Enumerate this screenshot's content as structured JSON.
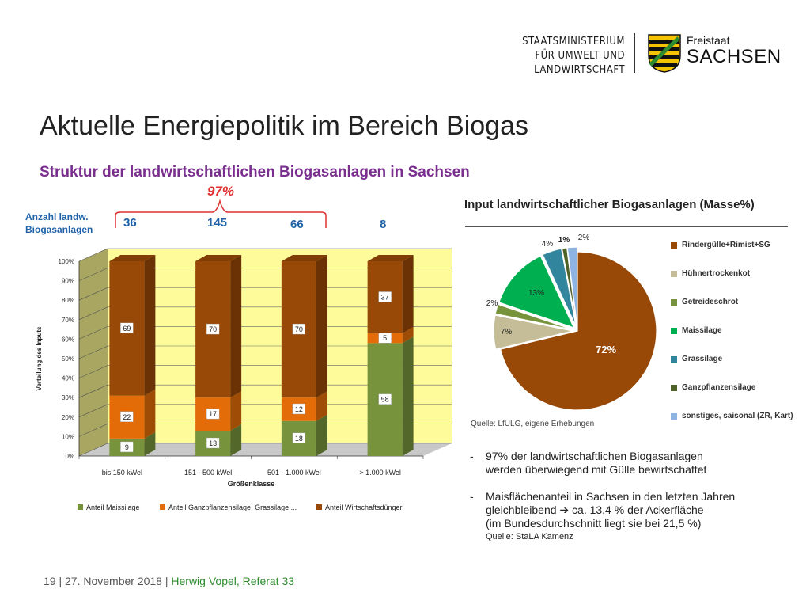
{
  "header": {
    "ministry_lines": [
      "STAATSMINISTERIUM",
      "FÜR UMWELT UND",
      "LANDWIRTSCHAFT"
    ],
    "state_small": "Freistaat",
    "state_big": "SACHSEN",
    "coat_of_arms_colors": [
      "#f5c400",
      "#111111",
      "#2e8b2e"
    ]
  },
  "page_title": "Aktuelle Energiepolitik im Bereich Biogas",
  "subtitle": "Struktur der landwirtschaftlichen Biogasanlagen in Sachsen",
  "bracket_label": "97%",
  "anzahl_label": [
    "Anzahl landw.",
    "Biogasanlagen"
  ],
  "counts": [
    "36",
    "145",
    "66",
    "8"
  ],
  "chart_data": [
    {
      "type": "bar",
      "stacked": true,
      "categories": [
        "bis 150 kWel",
        "151 - 500 kWel",
        "501 - 1.000 kWel",
        "> 1.000 kWel"
      ],
      "series": [
        {
          "name": "Anteil Maissilage",
          "values": [
            9,
            13,
            18,
            58
          ],
          "color": "#77933c"
        },
        {
          "name": "Anteil Ganzpflanzensilage, Grassilage ...",
          "values": [
            22,
            17,
            12,
            5
          ],
          "color": "#e36c09"
        },
        {
          "name": "Anteil Wirtschaftsdünger",
          "values": [
            69,
            70,
            70,
            37
          ],
          "color": "#984807"
        }
      ],
      "ylabel": "Verteilung des Inputs",
      "xlabel": "Größenklasse",
      "ylim": [
        0,
        100
      ],
      "yticks": [
        "0%",
        "10%",
        "20%",
        "30%",
        "40%",
        "50%",
        "60%",
        "70%",
        "80%",
        "90%",
        "100%"
      ],
      "background": "#fdfb9a",
      "legend_position": "bottom"
    },
    {
      "type": "pie",
      "title": "Input landwirtschaftlicher Biogasanlagen (Masse%)",
      "slices": [
        {
          "label": "Rindergülle+Rimist+SG",
          "value": 72,
          "text": "72%",
          "color": "#984807"
        },
        {
          "label": "Hühnertrockenkot",
          "value": 7,
          "text": "7%",
          "color": "#c4bd97"
        },
        {
          "label": "Getreideschrot",
          "value": 2,
          "text": "2%",
          "color": "#77933c"
        },
        {
          "label": "Maissilage",
          "value": 13,
          "text": "13%",
          "color": "#00b050"
        },
        {
          "label": "Grassilage",
          "value": 4,
          "text": "4%",
          "color": "#31859c"
        },
        {
          "label": "Ganzpflanzensilage",
          "value": 1,
          "text": "1%",
          "color": "#4f6228"
        },
        {
          "label": "sonstiges, saisonal (ZR, Kart)",
          "value": 2,
          "text": "2%",
          "color": "#8eb4e3"
        }
      ],
      "legend_position": "right"
    }
  ],
  "pie_source": "Quelle: LfULG, eigene Erhebungen",
  "bullets": [
    {
      "dash": "-",
      "lines": [
        "97% der landwirtschaftlichen Biogasanlagen",
        "werden überwiegend mit Gülle bewirtschaftet"
      ]
    },
    {
      "dash": "-",
      "lines": [
        "Maisflächenanteil in Sachsen in den letzten Jahren",
        "gleichbleibend  ➔ ca. 13,4 % der Ackerfläche",
        "(im Bundesdurchschnitt liegt sie bei 21,5 %)"
      ],
      "source": "Quelle: StaLA Kamenz"
    }
  ],
  "footer": {
    "page": "19",
    "date": "| 27. November 2018 |",
    "author": "Herwig Vopel, Referat 33"
  },
  "colors": {
    "title_purple": "#7a2f8f",
    "accent_red": "#e03030",
    "count_blue": "#1f62a8",
    "footer_green": "#2e8b2e"
  }
}
